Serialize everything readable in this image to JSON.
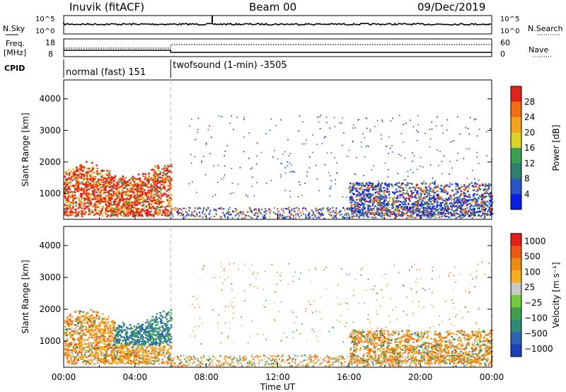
{
  "header": {
    "station": "Inuvik (fitACF)",
    "beam": "Beam 00",
    "date": "09/Dec/2019"
  },
  "status_panels": {
    "left_labels": [
      "N.Sky",
      "Freq.",
      "[MHz]",
      "CPID"
    ],
    "right_labels": [
      "N.Search",
      "Nave"
    ],
    "noise_ticks_left": [
      "10^5",
      "10^0"
    ],
    "noise_ticks_right": [
      "10^5",
      "10^0"
    ],
    "freq_ticks_left": [
      "18",
      "8"
    ],
    "nave_ticks_right": [
      "60",
      "0"
    ],
    "cpid_segments": [
      {
        "label": "normal (fast) 151",
        "start_hour": 0,
        "end_hour": 6
      },
      {
        "label": "twofsound (1-min) -3505",
        "start_hour": 6,
        "end_hour": 24
      }
    ]
  },
  "chart_data": [
    {
      "type": "heatmap",
      "panel": "power",
      "xlabel": "",
      "ylabel": "Slant Range [km]",
      "xlim": [
        0,
        24
      ],
      "ylim": [
        180,
        4600
      ],
      "yticks": [
        1000,
        2000,
        3000,
        4000
      ],
      "colorbar": {
        "label": "Power [dB]",
        "ticks": [
          "4",
          "8",
          "12",
          "16",
          "20",
          "24",
          "28"
        ],
        "range": [
          0,
          32
        ],
        "colors": [
          "#0a1ee6",
          "#2a55c9",
          "#2f7f6e",
          "#3b9f53",
          "#d9d323",
          "#f5a31d",
          "#f06d12",
          "#e3231b"
        ]
      },
      "description_regions": [
        {
          "hours": [
            0,
            6
          ],
          "range_km": [
            300,
            2200
          ],
          "level": "high"
        },
        {
          "hours": [
            16,
            24
          ],
          "range_km": [
            300,
            1500
          ],
          "level": "mixed"
        }
      ]
    },
    {
      "type": "heatmap",
      "panel": "velocity",
      "xlabel": "Time UT",
      "ylabel": "Slant Range [km]",
      "xlim": [
        0,
        24
      ],
      "ylim": [
        180,
        4600
      ],
      "yticks": [
        1000,
        2000,
        3000,
        4000
      ],
      "xticks": [
        "00:00",
        "04:00",
        "08:00",
        "12:00",
        "16:00",
        "20:00",
        "00:00"
      ],
      "colorbar": {
        "label": "Velocity [m s⁻¹]",
        "ticks": [
          "1000",
          "500",
          "100",
          "25",
          "−25",
          "−100",
          "−500",
          "−1000"
        ],
        "colors": [
          "#1f3fbf",
          "#2e63b8",
          "#2f8a78",
          "#3ea04c",
          "#74c83b",
          "#c8c8c8",
          "#f5b01e",
          "#f08a16",
          "#ec5a12",
          "#e41e1a"
        ]
      }
    }
  ]
}
